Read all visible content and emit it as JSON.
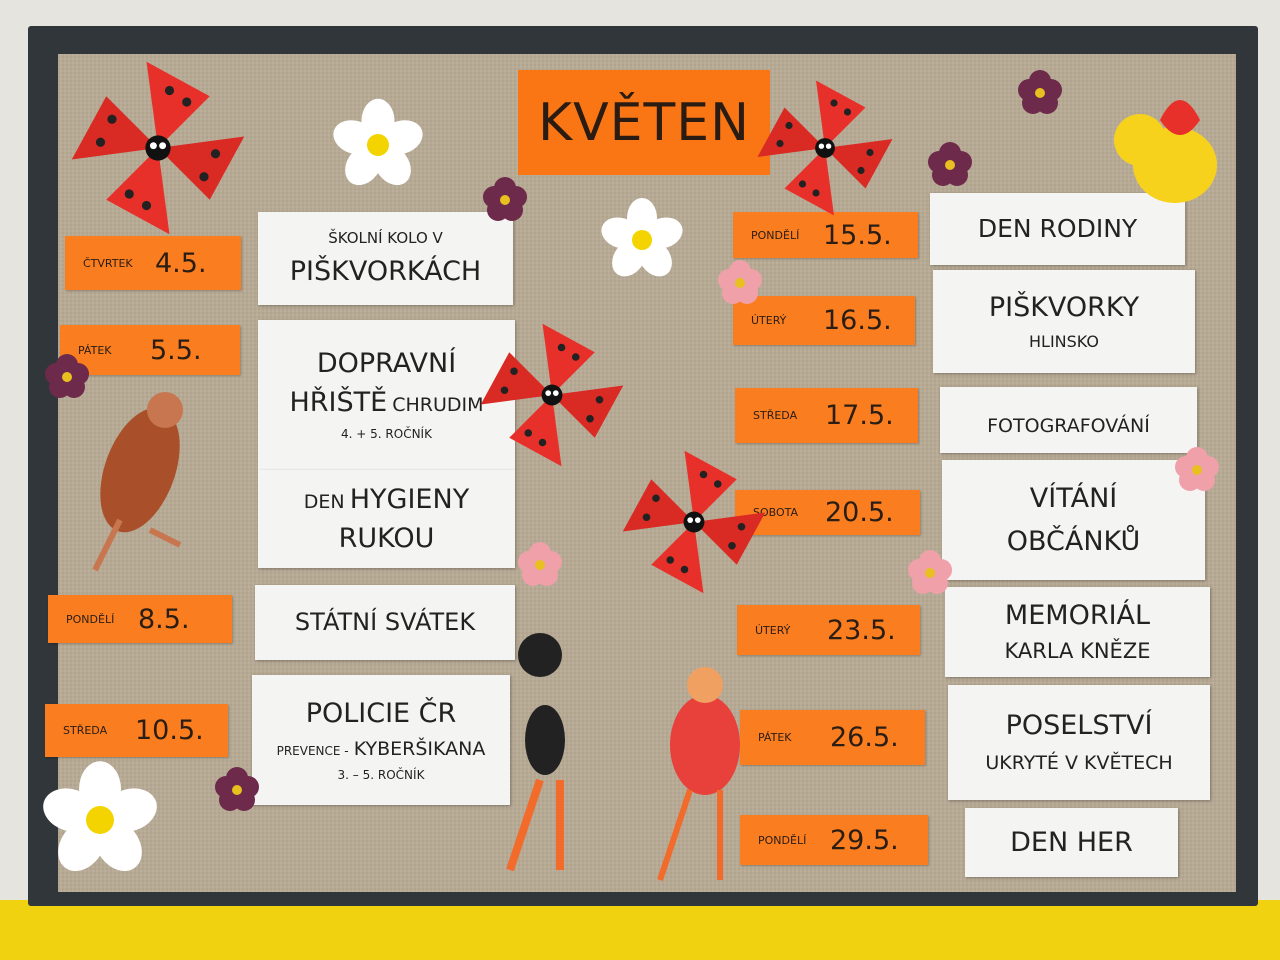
{
  "title": "KVĚTEN",
  "left_dates": [
    {
      "day": "ČTVRTEK",
      "date": "4.5."
    },
    {
      "day": "PÁTEK",
      "date": "5.5."
    },
    {
      "day": "PONDĚLÍ",
      "date": "8.5."
    },
    {
      "day": "STŘEDA",
      "date": "10.5."
    }
  ],
  "left_events": [
    {
      "line1": "ŠKOLNÍ KOLO V",
      "line2": "PIŠKVORKÁCH"
    },
    {
      "line1": "DOPRAVNÍ",
      "line2a": "HŘIŠTĚ",
      "line2b": "CHRUDIM",
      "line3": "4. + 5. ROČNÍK"
    },
    {
      "line1a": "DEN",
      "line1b": "HYGIENY",
      "line2": "RUKOU"
    },
    {
      "line1": "STÁTNÍ SVÁTEK"
    },
    {
      "line1": "POLICIE ČR",
      "line2a": "PREVENCE -",
      "line2b": "KYBERŠIKANA",
      "line3": "3. – 5. ROČNÍK"
    }
  ],
  "right_dates": [
    {
      "day": "PONDĚLÍ",
      "date": "15.5."
    },
    {
      "day": "ÚTERÝ",
      "date": "16.5."
    },
    {
      "day": "STŘEDA",
      "date": "17.5."
    },
    {
      "day": "SOBOTA",
      "date": "20.5."
    },
    {
      "day": "ÚTERÝ",
      "date": "23.5."
    },
    {
      "day": "PÁTEK",
      "date": "26.5."
    },
    {
      "day": "PONDĚLÍ",
      "date": "29.5."
    }
  ],
  "right_events": [
    {
      "line1": "DEN RODINY"
    },
    {
      "line1": "PIŠKVORKY",
      "line2": "HLINSKO"
    },
    {
      "line1": "FOTOGRAFOVÁNÍ"
    },
    {
      "line1": "VÍTÁNÍ",
      "line2": "OBČÁNKŮ"
    },
    {
      "line1": "MEMORIÁL",
      "line2": "KARLA KNĚZE"
    },
    {
      "line1": "POSELSTVÍ",
      "line2": "UKRYTÉ V KVĚTECH"
    },
    {
      "line1": "DEN HER"
    }
  ],
  "colors": {
    "orange": "#fa7d1f",
    "card": "#f4f4f2",
    "burlap": "#b8ab95",
    "frame": "#30363a",
    "pinwheel": "#e8302a"
  }
}
